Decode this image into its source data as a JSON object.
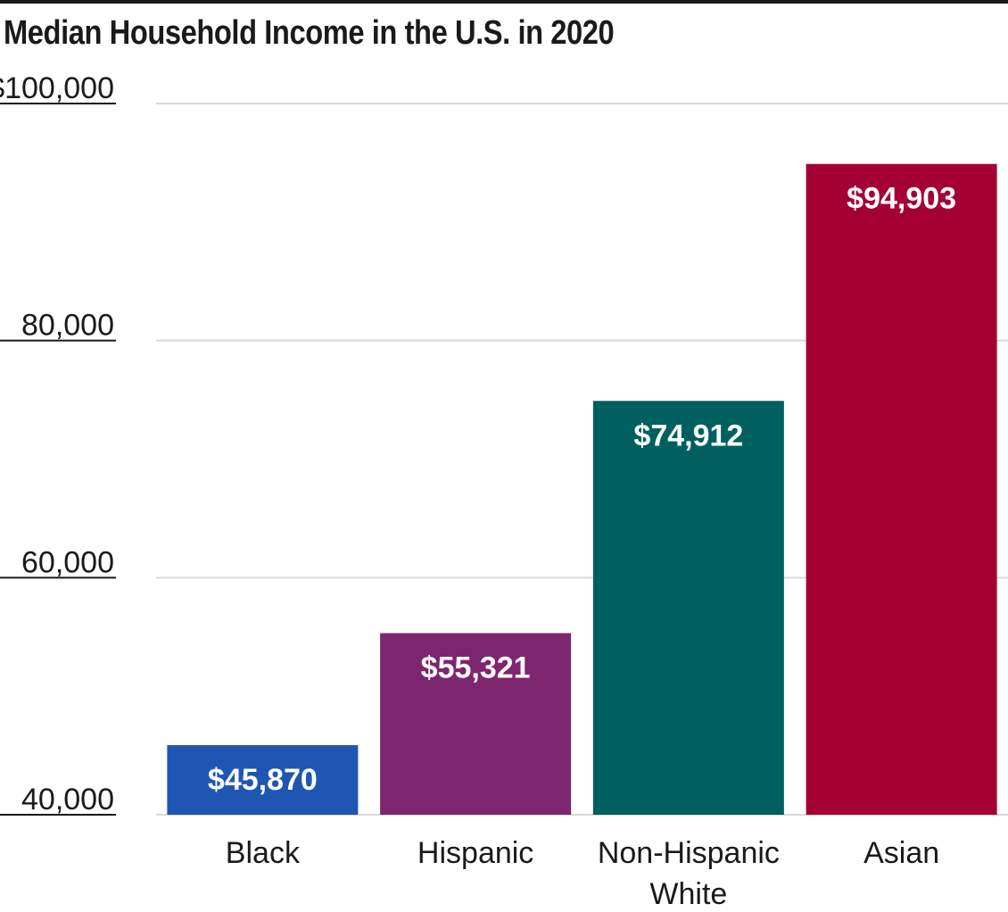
{
  "chart_data": {
    "type": "bar",
    "title": "Median Household Income in the U.S. in 2020",
    "categories": [
      "Black",
      "Hispanic",
      "Non-Hispanic White",
      "Asian"
    ],
    "category_lines": [
      [
        "Black"
      ],
      [
        "Hispanic"
      ],
      [
        "Non-Hispanic",
        "White"
      ],
      [
        "Asian"
      ]
    ],
    "values": [
      45870,
      55321,
      74912,
      94903
    ],
    "value_labels": [
      "$45,870",
      "$55,321",
      "$74,912",
      "$94,903"
    ],
    "colors": [
      "#2056b3",
      "#7e2570",
      "#006060",
      "#a50034"
    ],
    "ylim": [
      40000,
      100000
    ],
    "yticks": [
      40000,
      60000,
      80000,
      100000
    ],
    "ytick_labels": [
      "40,000",
      "60,000",
      "80,000",
      "$100,000"
    ],
    "grid": true
  }
}
